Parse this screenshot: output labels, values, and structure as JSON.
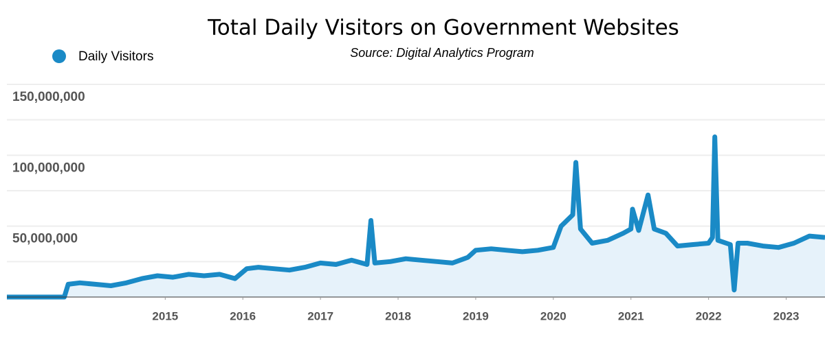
{
  "chart_data": {
    "type": "line",
    "title": "Total Daily Visitors on Government Websites",
    "subtitle": "Source: Digital Analytics Program",
    "x": [
      2012.96,
      2013.7,
      2013.75,
      2013.9,
      2014.1,
      2014.3,
      2014.5,
      2014.7,
      2014.9,
      2015.1,
      2015.3,
      2015.5,
      2015.7,
      2015.9,
      2016.05,
      2016.2,
      2016.4,
      2016.6,
      2016.8,
      2017.0,
      2017.2,
      2017.4,
      2017.6,
      2017.65,
      2017.7,
      2017.9,
      2018.1,
      2018.3,
      2018.5,
      2018.7,
      2018.9,
      2019.0,
      2019.2,
      2019.4,
      2019.6,
      2019.8,
      2020.0,
      2020.1,
      2020.25,
      2020.29,
      2020.35,
      2020.5,
      2020.7,
      2020.9,
      2021.0,
      2021.02,
      2021.1,
      2021.22,
      2021.3,
      2021.45,
      2021.6,
      2021.8,
      2022.0,
      2022.05,
      2022.08,
      2022.12,
      2022.28,
      2022.33,
      2022.38,
      2022.5,
      2022.7,
      2022.9,
      2023.1,
      2023.3,
      2023.5
    ],
    "series": [
      {
        "name": "Daily Visitors",
        "color": "#1a8ac6",
        "values": [
          0,
          0,
          9000000,
          10000000,
          9000000,
          8000000,
          10000000,
          13000000,
          15000000,
          14000000,
          16000000,
          15000000,
          16000000,
          13000000,
          20000000,
          21000000,
          20000000,
          19000000,
          21000000,
          24000000,
          23000000,
          26000000,
          23000000,
          54000000,
          24000000,
          25000000,
          27000000,
          26000000,
          25000000,
          24000000,
          28000000,
          33000000,
          34000000,
          33000000,
          32000000,
          33000000,
          35000000,
          50000000,
          58000000,
          95000000,
          48000000,
          38000000,
          40000000,
          45000000,
          48000000,
          62000000,
          47000000,
          72000000,
          48000000,
          45000000,
          36000000,
          37000000,
          38000000,
          42000000,
          113000000,
          40000000,
          37000000,
          5000000,
          38000000,
          38000000,
          36000000,
          35000000,
          38000000,
          43000000,
          42000000
        ]
      }
    ],
    "area_color": "#e6f2fa",
    "xlim": [
      2012.96,
      2023.5
    ],
    "xticks": [
      2015,
      2016,
      2017,
      2018,
      2019,
      2020,
      2021,
      2022,
      2023
    ],
    "ylim": [
      0,
      150000000
    ],
    "yticks": [
      {
        "value": 50000000,
        "label": "50,000,000"
      },
      {
        "value": 100000000,
        "label": "100,000,000"
      },
      {
        "value": 150000000,
        "label": "150,000,000"
      }
    ],
    "minor_yticks": [
      25000000,
      75000000,
      125000000
    ],
    "grid": true
  }
}
